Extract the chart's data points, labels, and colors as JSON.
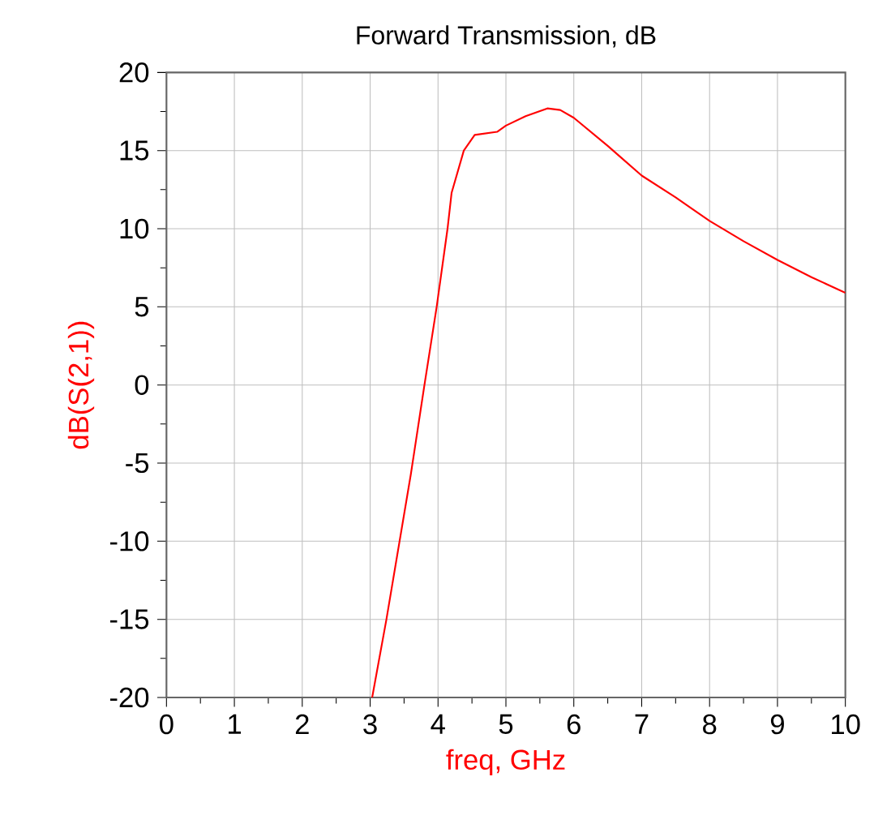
{
  "chart_data": {
    "type": "line",
    "title": "Forward Transmission, dB",
    "xlabel": "freq, GHz",
    "ylabel": "dB(S(2,1))",
    "xlim": [
      0,
      10
    ],
    "xticks": [
      0,
      1,
      2,
      3,
      4,
      5,
      6,
      7,
      8,
      9,
      10
    ],
    "ylim": [
      -20,
      20
    ],
    "yticks": [
      -20,
      -15,
      -10,
      -5,
      0,
      5,
      10,
      15,
      20
    ],
    "grid": true,
    "marker": "none",
    "line_style": "solid",
    "series": [
      {
        "color": "#ff0000",
        "x": [
          3.03,
          3.24,
          3.6,
          3.8,
          3.98,
          4.14,
          4.2,
          4.38,
          4.54,
          4.87,
          5.0,
          5.29,
          5.61,
          5.8,
          6.0,
          6.5,
          7.0,
          7.5,
          8.0,
          8.5,
          9.0,
          9.5,
          10.0
        ],
        "values": [
          -20,
          -15,
          -5.7,
          0,
          5,
          10,
          12.3,
          15,
          16,
          16.2,
          16.6,
          17.2,
          17.7,
          17.6,
          17.1,
          15.3,
          13.4,
          12.0,
          10.5,
          9.2,
          8.0,
          6.9,
          5.9
        ]
      }
    ]
  }
}
